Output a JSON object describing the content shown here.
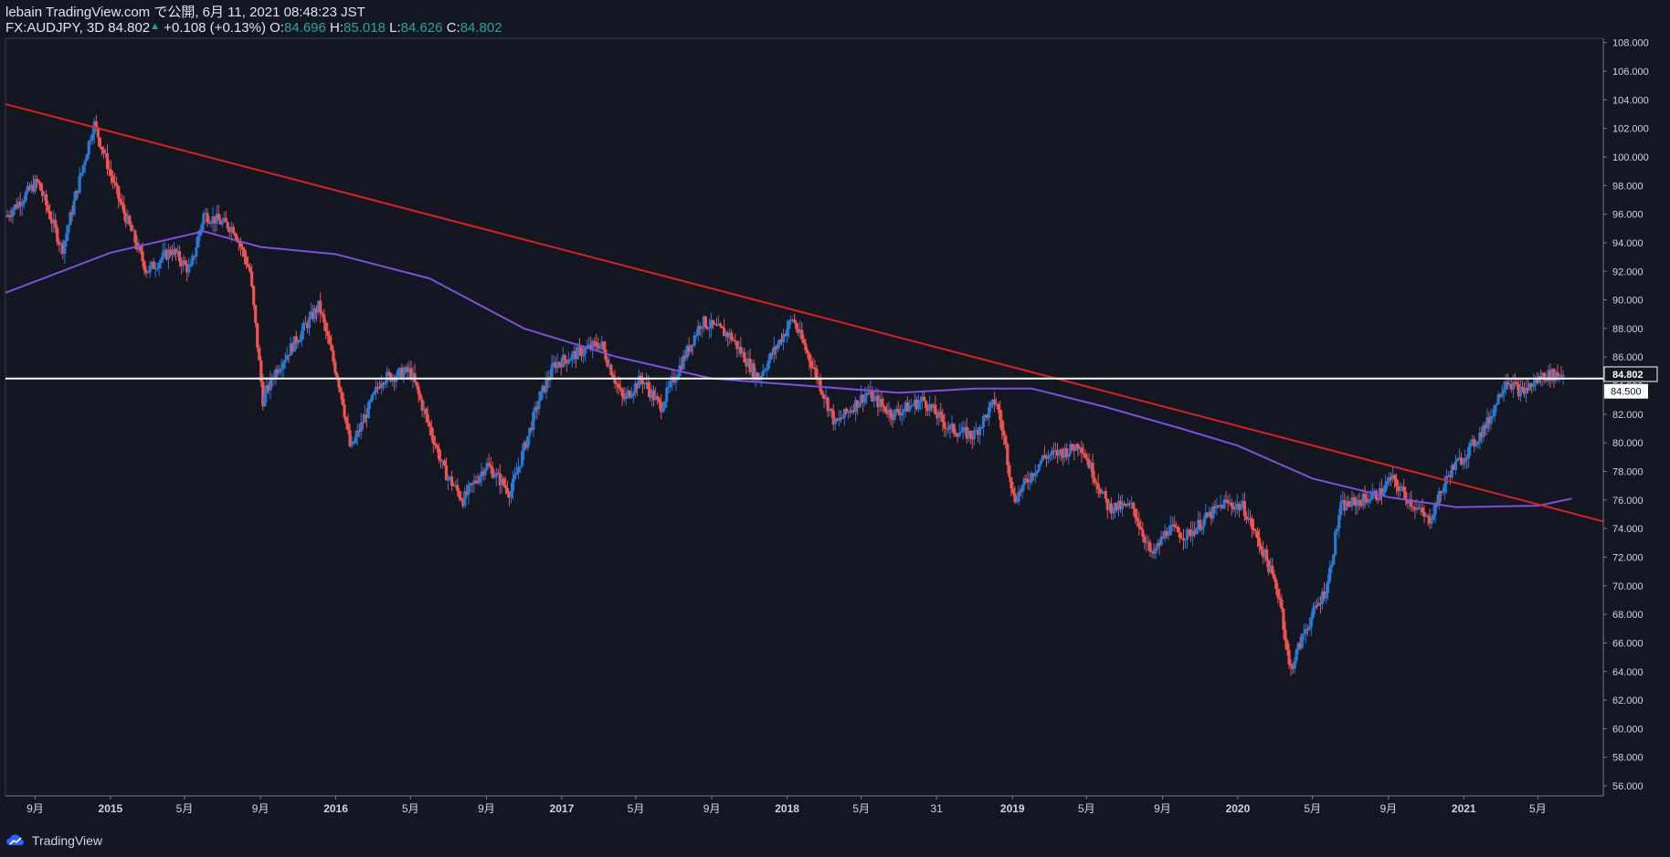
{
  "header": {
    "line1": "lebain TradingView.com で公開, 6月 11, 2021 08:48:23 JST",
    "symbol": "FX:AUDJPY, 3D",
    "last": "84.802",
    "change": "+0.108 (+0.13%)",
    "o_label": "O:",
    "o_value": "84.696",
    "h_label": "H:",
    "h_value": "85.018",
    "l_label": "L:",
    "l_value": "84.626",
    "c_label": "C:",
    "c_value": "84.802"
  },
  "footer": {
    "brand": "TradingView"
  },
  "colors": {
    "background": "#131722",
    "up": "#2979d4",
    "down": "#ef5350",
    "trendline": "#e01f1f",
    "moving_average": "#7e4fe0",
    "horizontal_line": "#ffffff",
    "axis_text": "#d1d4dc"
  },
  "chart_data": {
    "type": "candlestick",
    "x_axis": {
      "ticks": [
        {
          "label": "9月",
          "date": "2014-09-01"
        },
        {
          "label": "2015",
          "date": "2015-01-01"
        },
        {
          "label": "5月",
          "date": "2015-05-01"
        },
        {
          "label": "9月",
          "date": "2015-09-01"
        },
        {
          "label": "2016",
          "date": "2016-01-01"
        },
        {
          "label": "5月",
          "date": "2016-05-01"
        },
        {
          "label": "9月",
          "date": "2016-09-01"
        },
        {
          "label": "2017",
          "date": "2017-01-01"
        },
        {
          "label": "5月",
          "date": "2017-05-01"
        },
        {
          "label": "9月",
          "date": "2017-09-01"
        },
        {
          "label": "2018",
          "date": "2018-01-01"
        },
        {
          "label": "5月",
          "date": "2018-05-01"
        },
        {
          "label": "31",
          "date": "2018-08-31"
        },
        {
          "label": "2019",
          "date": "2019-01-01"
        },
        {
          "label": "5月",
          "date": "2019-05-01"
        },
        {
          "label": "9月",
          "date": "2019-09-01"
        },
        {
          "label": "2020",
          "date": "2020-01-01"
        },
        {
          "label": "5月",
          "date": "2020-05-01"
        },
        {
          "label": "9月",
          "date": "2020-09-01"
        },
        {
          "label": "2021",
          "date": "2021-01-01"
        },
        {
          "label": "5月",
          "date": "2021-05-01"
        }
      ],
      "range": [
        "2014-07-15",
        "2021-08-15"
      ]
    },
    "y_axis": {
      "range": [
        55.3,
        108.3
      ],
      "ticks": [
        "108.000",
        "106.000",
        "104.000",
        "102.000",
        "100.000",
        "98.000",
        "96.000",
        "94.000",
        "92.000",
        "90.000",
        "88.000",
        "86.000",
        "84.000",
        "82.000",
        "80.000",
        "78.000",
        "76.000",
        "74.000",
        "72.000",
        "70.000",
        "68.000",
        "66.000",
        "64.000",
        "62.000",
        "60.000",
        "58.000",
        "56.000"
      ],
      "last_price_label": "84.802",
      "line_label": "84.500"
    },
    "price_path": [
      [
        "2014-07-15",
        95.8
      ],
      [
        "2014-09-05",
        98.3
      ],
      [
        "2014-10-15",
        93.5
      ],
      [
        "2014-12-05",
        102.4
      ],
      [
        "2015-01-15",
        97.0
      ],
      [
        "2015-03-01",
        92.0
      ],
      [
        "2015-04-10",
        93.5
      ],
      [
        "2015-05-10",
        92.0
      ],
      [
        "2015-06-01",
        96.0
      ],
      [
        "2015-07-20",
        95.0
      ],
      [
        "2015-08-15",
        92.0
      ],
      [
        "2015-09-05",
        83.0
      ],
      [
        "2015-09-25",
        85.0
      ],
      [
        "2015-12-05",
        89.6
      ],
      [
        "2016-01-10",
        83.5
      ],
      [
        "2016-01-25",
        79.5
      ],
      [
        "2016-03-15",
        84.5
      ],
      [
        "2016-05-01",
        85.0
      ],
      [
        "2016-06-25",
        78.0
      ],
      [
        "2016-07-25",
        76.0
      ],
      [
        "2016-09-01",
        78.5
      ],
      [
        "2016-10-10",
        76.5
      ],
      [
        "2016-11-25",
        83.0
      ],
      [
        "2016-12-20",
        85.5
      ],
      [
        "2017-03-05",
        87.0
      ],
      [
        "2017-04-10",
        83.0
      ],
      [
        "2017-05-10",
        84.5
      ],
      [
        "2017-06-10",
        82.5
      ],
      [
        "2017-08-15",
        88.5
      ],
      [
        "2017-10-01",
        87.5
      ],
      [
        "2017-11-15",
        84.5
      ],
      [
        "2017-12-05",
        86.0
      ],
      [
        "2018-01-10",
        88.7
      ],
      [
        "2018-02-15",
        85.0
      ],
      [
        "2018-03-20",
        81.3
      ],
      [
        "2018-05-10",
        83.5
      ],
      [
        "2018-06-20",
        82.0
      ],
      [
        "2018-08-10",
        83.0
      ],
      [
        "2018-09-20",
        81.0
      ],
      [
        "2018-10-30",
        80.5
      ],
      [
        "2018-12-05",
        83.0
      ],
      [
        "2018-12-20",
        80.0
      ],
      [
        "2019-01-03",
        76.0
      ],
      [
        "2019-02-20",
        79.0
      ],
      [
        "2019-04-05",
        79.5
      ],
      [
        "2019-04-20",
        80.0
      ],
      [
        "2019-06-05",
        75.5
      ],
      [
        "2019-07-15",
        75.5
      ],
      [
        "2019-08-15",
        72.0
      ],
      [
        "2019-09-10",
        74.0
      ],
      [
        "2019-10-10",
        73.5
      ],
      [
        "2019-11-05",
        74.5
      ],
      [
        "2019-12-10",
        75.8
      ],
      [
        "2020-01-10",
        75.5
      ],
      [
        "2020-02-15",
        72.0
      ],
      [
        "2020-03-10",
        69.0
      ],
      [
        "2020-03-25",
        64.0
      ],
      [
        "2020-04-20",
        67.0
      ],
      [
        "2020-05-25",
        70.0
      ],
      [
        "2020-06-15",
        75.5
      ],
      [
        "2020-07-20",
        76.0
      ],
      [
        "2020-08-20",
        76.5
      ],
      [
        "2020-09-05",
        77.5
      ],
      [
        "2020-10-15",
        75.5
      ],
      [
        "2020-11-05",
        74.5
      ],
      [
        "2020-12-10",
        78.0
      ],
      [
        "2021-01-10",
        79.5
      ],
      [
        "2021-02-10",
        81.5
      ],
      [
        "2021-03-10",
        84.5
      ],
      [
        "2021-04-05",
        83.5
      ],
      [
        "2021-05-10",
        84.7
      ],
      [
        "2021-06-11",
        84.802
      ]
    ],
    "moving_average": [
      [
        "2014-07-15",
        90.5
      ],
      [
        "2015-01-01",
        93.3
      ],
      [
        "2015-06-01",
        94.8
      ],
      [
        "2015-09-01",
        93.7
      ],
      [
        "2016-01-01",
        93.2
      ],
      [
        "2016-06-01",
        91.5
      ],
      [
        "2016-11-01",
        88.0
      ],
      [
        "2017-04-01",
        86.0
      ],
      [
        "2017-09-01",
        84.5
      ],
      [
        "2018-03-01",
        83.9
      ],
      [
        "2018-07-01",
        83.5
      ],
      [
        "2018-11-01",
        83.8
      ],
      [
        "2019-02-01",
        83.8
      ],
      [
        "2019-06-01",
        82.5
      ],
      [
        "2019-10-01",
        81.0
      ],
      [
        "2020-01-01",
        79.8
      ],
      [
        "2020-05-01",
        77.5
      ],
      [
        "2020-09-01",
        76.2
      ],
      [
        "2020-12-20",
        75.5
      ],
      [
        "2021-05-01",
        75.6
      ],
      [
        "2021-06-25",
        76.1
      ]
    ],
    "trendline": [
      [
        "2014-07-15",
        103.7
      ],
      [
        "2021-08-15",
        74.5
      ]
    ],
    "horizontal_line": 84.5,
    "grid": false
  }
}
